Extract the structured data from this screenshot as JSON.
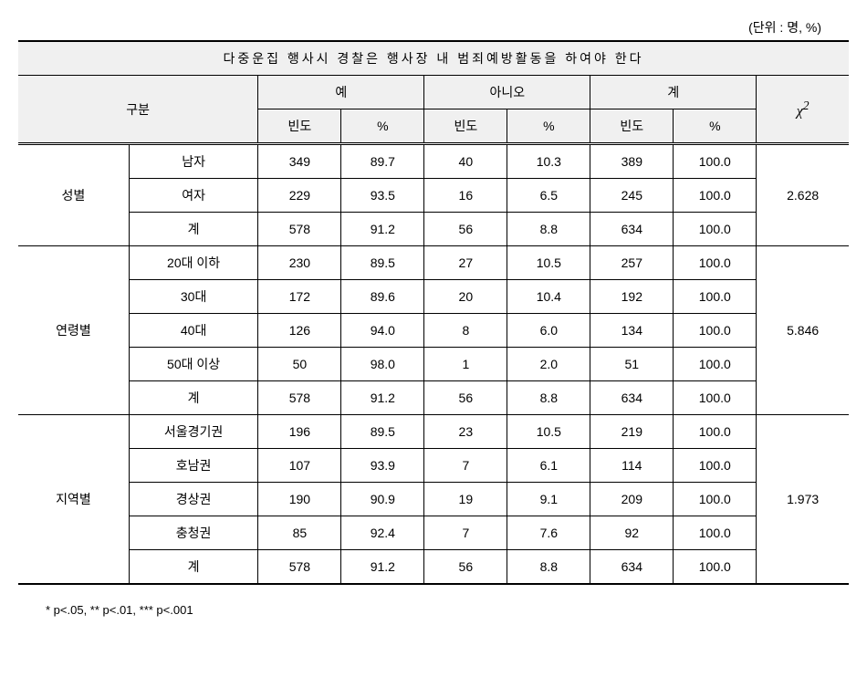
{
  "unit_label": "(단위 : 명, %)",
  "title": "다중운집 행사시 경찰은 행사장 내 범죄예방활동을 하여야 한다",
  "headers": {
    "gubun": "구분",
    "yes": "예",
    "no": "아니오",
    "total": "계",
    "chi": "χ",
    "chi_sup": "2",
    "freq": "빈도",
    "pct": "%"
  },
  "sections": [
    {
      "label": "성별",
      "chi_value": "2.628",
      "rows": [
        {
          "cat": "남자",
          "yes_f": "349",
          "yes_p": "89.7",
          "no_f": "40",
          "no_p": "10.3",
          "tot_f": "389",
          "tot_p": "100.0"
        },
        {
          "cat": "여자",
          "yes_f": "229",
          "yes_p": "93.5",
          "no_f": "16",
          "no_p": "6.5",
          "tot_f": "245",
          "tot_p": "100.0"
        },
        {
          "cat": "계",
          "yes_f": "578",
          "yes_p": "91.2",
          "no_f": "56",
          "no_p": "8.8",
          "tot_f": "634",
          "tot_p": "100.0"
        }
      ]
    },
    {
      "label": "연령별",
      "chi_value": "5.846",
      "rows": [
        {
          "cat": "20대 이하",
          "yes_f": "230",
          "yes_p": "89.5",
          "no_f": "27",
          "no_p": "10.5",
          "tot_f": "257",
          "tot_p": "100.0"
        },
        {
          "cat": "30대",
          "yes_f": "172",
          "yes_p": "89.6",
          "no_f": "20",
          "no_p": "10.4",
          "tot_f": "192",
          "tot_p": "100.0"
        },
        {
          "cat": "40대",
          "yes_f": "126",
          "yes_p": "94.0",
          "no_f": "8",
          "no_p": "6.0",
          "tot_f": "134",
          "tot_p": "100.0"
        },
        {
          "cat": "50대 이상",
          "yes_f": "50",
          "yes_p": "98.0",
          "no_f": "1",
          "no_p": "2.0",
          "tot_f": "51",
          "tot_p": "100.0"
        },
        {
          "cat": "계",
          "yes_f": "578",
          "yes_p": "91.2",
          "no_f": "56",
          "no_p": "8.8",
          "tot_f": "634",
          "tot_p": "100.0"
        }
      ]
    },
    {
      "label": "지역별",
      "chi_value": "1.973",
      "rows": [
        {
          "cat": "서울경기권",
          "yes_f": "196",
          "yes_p": "89.5",
          "no_f": "23",
          "no_p": "10.5",
          "tot_f": "219",
          "tot_p": "100.0"
        },
        {
          "cat": "호남권",
          "yes_f": "107",
          "yes_p": "93.9",
          "no_f": "7",
          "no_p": "6.1",
          "tot_f": "114",
          "tot_p": "100.0"
        },
        {
          "cat": "경상권",
          "yes_f": "190",
          "yes_p": "90.9",
          "no_f": "19",
          "no_p": "9.1",
          "tot_f": "209",
          "tot_p": "100.0"
        },
        {
          "cat": "충청권",
          "yes_f": "85",
          "yes_p": "92.4",
          "no_f": "7",
          "no_p": "7.6",
          "tot_f": "92",
          "tot_p": "100.0"
        },
        {
          "cat": "계",
          "yes_f": "578",
          "yes_p": "91.2",
          "no_f": "56",
          "no_p": "8.8",
          "tot_f": "634",
          "tot_p": "100.0"
        }
      ]
    }
  ],
  "footnote": "* p<.05, ** p<.01, *** p<.001",
  "colors": {
    "header_bg": "#f0f0f0",
    "border": "#000000",
    "background": "#ffffff"
  },
  "column_widths_pct": [
    12,
    14,
    9,
    9,
    9,
    9,
    9,
    9,
    10
  ]
}
